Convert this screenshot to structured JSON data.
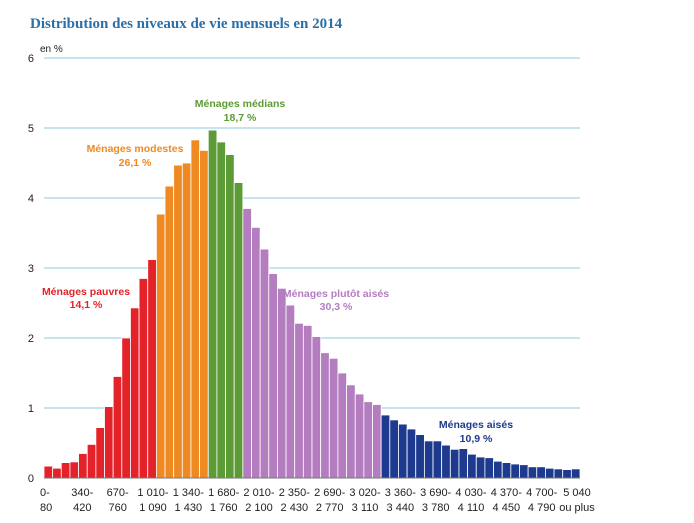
{
  "chart_data": {
    "type": "bar",
    "title": "Distribution des niveaux de vie mensuels en 2014",
    "ylabel": "en %",
    "ylim": [
      0,
      6
    ],
    "yticks": [
      "0",
      "1",
      "2",
      "3",
      "4",
      "5",
      "6"
    ],
    "grid": true,
    "x_tick_labels": [
      [
        "0-",
        "80"
      ],
      [
        "340-",
        "420"
      ],
      [
        "670-",
        "760"
      ],
      [
        "1 010-",
        "1 090"
      ],
      [
        "1 340-",
        "1 430"
      ],
      [
        "1 680-",
        "1 760"
      ],
      [
        "2 010-",
        "2 100"
      ],
      [
        "2 350-",
        "2 430"
      ],
      [
        "2 690-",
        "2 770"
      ],
      [
        "3 020-",
        "3 110"
      ],
      [
        "3 360-",
        "3 440"
      ],
      [
        "3 690-",
        "3 780"
      ],
      [
        "4 030-",
        "4 110"
      ],
      [
        "4 370-",
        "4 450"
      ],
      [
        "4 700-",
        "4 790"
      ],
      [
        "5 040",
        "ou plus"
      ]
    ],
    "values": [
      0.17,
      0.14,
      0.22,
      0.23,
      0.35,
      0.48,
      0.72,
      1.02,
      1.45,
      2.0,
      2.43,
      2.85,
      3.12,
      3.77,
      4.17,
      4.47,
      4.5,
      4.83,
      4.68,
      4.97,
      4.8,
      4.62,
      4.22,
      3.85,
      3.58,
      3.27,
      2.92,
      2.71,
      2.47,
      2.21,
      2.18,
      2.02,
      1.79,
      1.71,
      1.5,
      1.33,
      1.2,
      1.09,
      1.05,
      0.9,
      0.83,
      0.77,
      0.7,
      0.62,
      0.53,
      0.53,
      0.47,
      0.41,
      0.42,
      0.34,
      0.3,
      0.29,
      0.24,
      0.22,
      0.2,
      0.19,
      0.16,
      0.16,
      0.14,
      0.13,
      0.12,
      0.13
    ],
    "groups": [
      {
        "name": "Ménages pauvres",
        "share": "14,1 %",
        "count": 13,
        "color": "#e32229"
      },
      {
        "name": "Ménages modestes",
        "share": "26,1 %",
        "count": 6,
        "color": "#ef8a22"
      },
      {
        "name": "Ménages médians",
        "share": "18,7 %",
        "count": 4,
        "color": "#5c9b35"
      },
      {
        "name": "Ménages plutôt aisés",
        "share": "30,3 %",
        "count": 16,
        "color": "#b37dc0"
      },
      {
        "name": "Ménages aisés",
        "share": "10,9 %",
        "count": 23,
        "color": "#1d3a8f"
      }
    ]
  }
}
